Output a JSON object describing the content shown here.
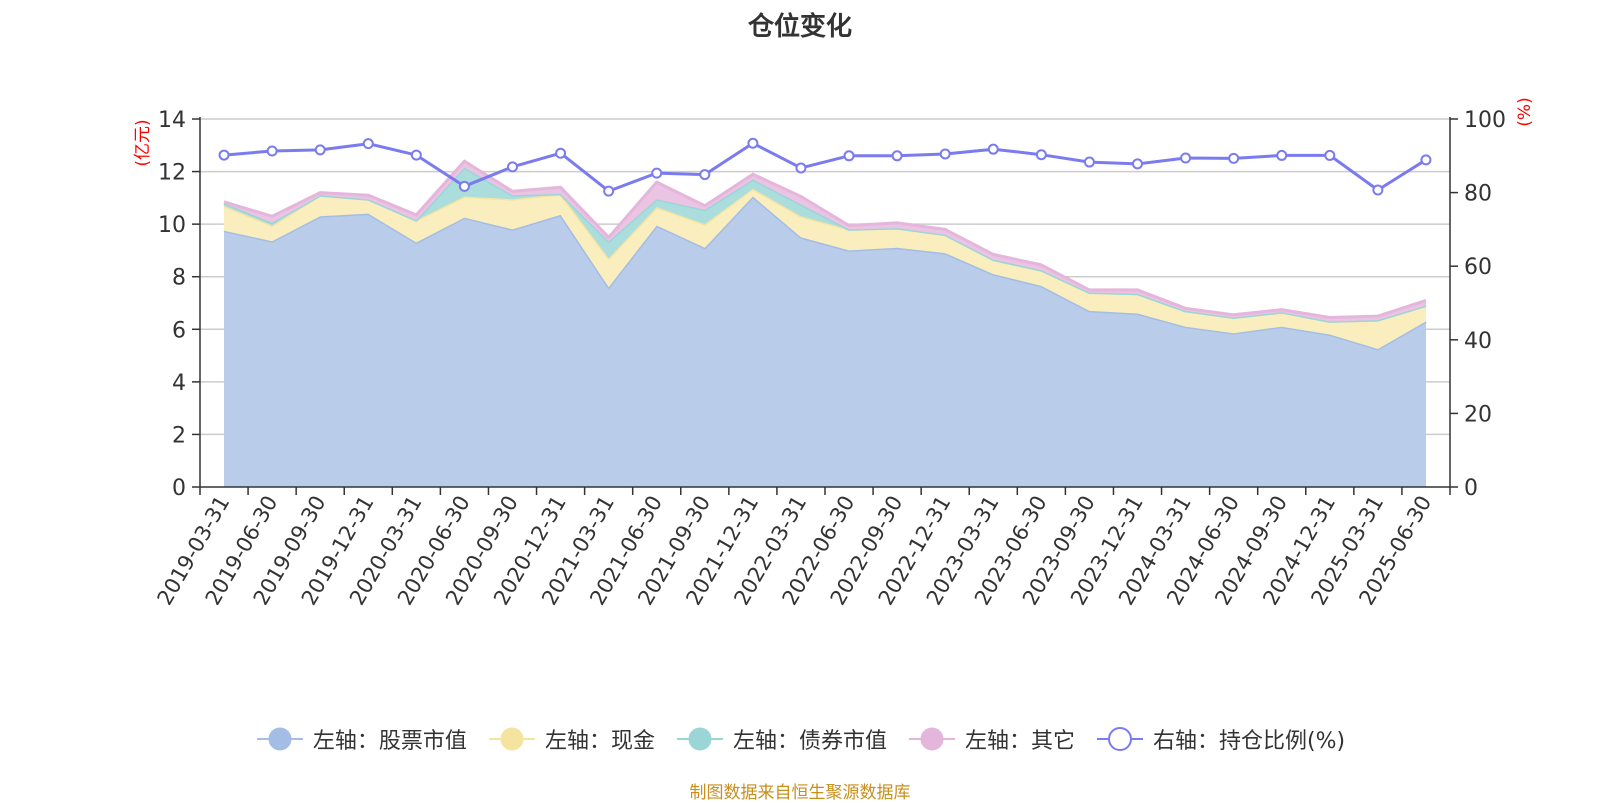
{
  "chart_data": {
    "type": "area",
    "title": "仓位变化",
    "y_left_label": "(亿元)",
    "y_right_label": "(%)",
    "y_left_range": [
      0,
      14
    ],
    "y_left_ticks": [
      0,
      2,
      4,
      6,
      8,
      10,
      12,
      14
    ],
    "y_right_range": [
      0,
      100
    ],
    "y_right_ticks": [
      0,
      20,
      40,
      60,
      80,
      100
    ],
    "grid": true,
    "legend_position": "bottom",
    "categories": [
      "2019-03-31",
      "2019-06-30",
      "2019-09-30",
      "2019-12-31",
      "2020-03-31",
      "2020-06-30",
      "2020-09-30",
      "2020-12-31",
      "2021-03-31",
      "2021-06-30",
      "2021-09-30",
      "2021-12-31",
      "2022-03-31",
      "2022-06-30",
      "2022-09-30",
      "2022-12-31",
      "2023-03-31",
      "2023-06-30",
      "2023-09-30",
      "2023-12-31",
      "2024-03-31",
      "2024-06-30",
      "2024-09-30",
      "2024-12-31",
      "2025-03-31",
      "2025-06-30"
    ],
    "series": [
      {
        "name": "左轴：股票市值",
        "axis": "left",
        "stack": true,
        "color": "#a3bde4",
        "fill": "#b9cdeb",
        "values": [
          9.75,
          9.35,
          10.3,
          10.4,
          9.3,
          10.25,
          9.8,
          10.35,
          7.6,
          9.95,
          9.1,
          11.05,
          9.5,
          9.0,
          9.1,
          8.9,
          8.1,
          7.65,
          6.7,
          6.6,
          6.1,
          5.85,
          6.1,
          5.8,
          5.25,
          6.3
        ]
      },
      {
        "name": "左轴：现金",
        "axis": "left",
        "stack": true,
        "color": "#f5e3a0",
        "fill": "#faeebf",
        "values": [
          0.95,
          0.6,
          0.8,
          0.55,
          0.85,
          0.8,
          1.15,
          0.8,
          1.1,
          0.7,
          0.9,
          0.3,
          0.8,
          0.8,
          0.75,
          0.7,
          0.55,
          0.6,
          0.7,
          0.75,
          0.6,
          0.6,
          0.55,
          0.5,
          1.1,
          0.6
        ]
      },
      {
        "name": "左轴：债券市值",
        "axis": "left",
        "stack": true,
        "color": "#9ad6d8",
        "fill": "#abdddd",
        "values": [
          0.1,
          0.1,
          0,
          0,
          0,
          1.1,
          0.15,
          0,
          0.65,
          0.3,
          0.55,
          0.35,
          0.45,
          0,
          0,
          0,
          0,
          0,
          0,
          0,
          0,
          0,
          0,
          0,
          0,
          0
        ]
      },
      {
        "name": "左轴：其它",
        "axis": "left",
        "stack": true,
        "color": "#e5b6dc",
        "fill": "#ebc3e3",
        "values": [
          0.05,
          0.25,
          0.1,
          0.15,
          0.2,
          0.25,
          0.15,
          0.25,
          0.15,
          0.65,
          0.15,
          0.2,
          0.3,
          0.15,
          0.2,
          0.2,
          0.2,
          0.2,
          0.1,
          0.15,
          0.1,
          0.1,
          0.1,
          0.15,
          0.15,
          0.2
        ]
      },
      {
        "name": "右轴：持仓比例(%)",
        "axis": "right",
        "stack": false,
        "color": "#7b7bf0",
        "values": [
          90.2,
          91.3,
          91.6,
          93.3,
          90.2,
          81.7,
          87.0,
          90.7,
          80.4,
          85.3,
          84.9,
          93.4,
          86.7,
          90.0,
          90.0,
          90.5,
          91.8,
          90.3,
          88.3,
          87.8,
          89.4,
          89.3,
          90.1,
          90.1,
          80.7,
          88.9
        ]
      }
    ]
  },
  "footer": "制图数据来自恒生聚源数据库"
}
